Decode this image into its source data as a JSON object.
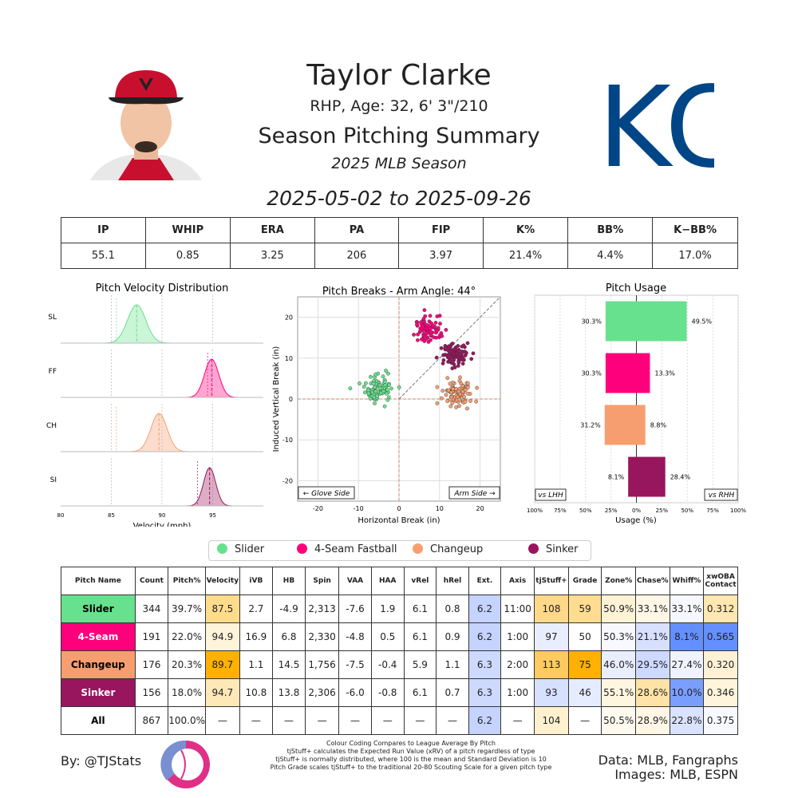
{
  "header": {
    "player_name": "Taylor Clarke",
    "player_info": "RHP, Age: 32, 6' 3\"/210",
    "summary_title": "Season Pitching Summary",
    "season": "2025 MLB Season",
    "date_range": "2025-05-02 to 2025-09-26",
    "team_logo_text": "KC"
  },
  "stats": {
    "headers": [
      "IP",
      "WHIP",
      "ERA",
      "PA",
      "FIP",
      "K%",
      "BB%",
      "K−BB%"
    ],
    "values": [
      "55.1",
      "0.85",
      "3.25",
      "206",
      "3.97",
      "21.4%",
      "4.4%",
      "17.0%"
    ]
  },
  "colors": {
    "slider": "#67e18d",
    "fastball": "#ff007d",
    "changeup": "#f79e70",
    "sinker": "#98165d",
    "table_blue": "#648fff",
    "table_orange": "#ffb000"
  },
  "chart_data": [
    {
      "type": "area",
      "title": "Pitch Velocity Distribution",
      "xlabel": "Velocity (mph)",
      "xlim": [
        80,
        100
      ],
      "xticks": [
        "80",
        "85",
        "90",
        "95"
      ],
      "series": [
        {
          "name": "SL",
          "mean": 87.5,
          "sd": 0.9,
          "color": "#67e18d",
          "league_mean": 85.5
        },
        {
          "name": "FF",
          "mean": 94.9,
          "sd": 0.7,
          "color": "#ff007d",
          "league_mean": 94.5
        },
        {
          "name": "CH",
          "mean": 89.7,
          "sd": 0.8,
          "color": "#f79e70",
          "league_mean": 85.5
        },
        {
          "name": "SI",
          "mean": 94.7,
          "sd": 0.6,
          "color": "#98165d",
          "league_mean": 93.5
        }
      ]
    },
    {
      "type": "scatter",
      "title": "Pitch Breaks - Arm Angle: 44°",
      "xlabel": "Horizontal Break (in)",
      "ylabel": "Induced Vertical Break (in)",
      "xlim": [
        -25,
        25
      ],
      "ylim": [
        -25,
        25
      ],
      "xticks": [
        "-20",
        "-10",
        "0",
        "10",
        "20"
      ],
      "yticks": [
        "20",
        "10",
        "0",
        "-10",
        "-20"
      ],
      "glove_side": "← Glove Side",
      "arm_side": "Arm Side →",
      "series": [
        {
          "name": "Slider",
          "hb": -4.9,
          "ivb": 2.7,
          "color": "#67e18d"
        },
        {
          "name": "4-Seam Fastball",
          "hb": 6.8,
          "ivb": 16.9,
          "color": "#ff007d"
        },
        {
          "name": "Changeup",
          "hb": 14.5,
          "ivb": 1.1,
          "color": "#f79e70"
        },
        {
          "name": "Sinker",
          "hb": 13.8,
          "ivb": 10.8,
          "color": "#98165d"
        }
      ]
    },
    {
      "type": "bar",
      "title": "Pitch Usage",
      "xlabel": "Usage (%)",
      "xlim": [
        -100,
        100
      ],
      "xticks": [
        "100%",
        "75%",
        "50%",
        "25%",
        "0%",
        "25%",
        "50%",
        "75%",
        "100%"
      ],
      "vs_lhh": "vs LHH",
      "vs_rhh": "vs RHH",
      "series": [
        {
          "name": "Slider",
          "lhh": 30.3,
          "rhh": 49.5,
          "lhh_label": "30.3%",
          "rhh_label": "49.5%",
          "color": "#67e18d"
        },
        {
          "name": "4-Seam Fastball",
          "lhh": 30.3,
          "rhh": 13.3,
          "lhh_label": "30.3%",
          "rhh_label": "13.3%",
          "color": "#ff007d"
        },
        {
          "name": "Changeup",
          "lhh": 31.2,
          "rhh": 8.8,
          "lhh_label": "31.2%",
          "rhh_label": "8.8%",
          "color": "#f79e70"
        },
        {
          "name": "Sinker",
          "lhh": 8.1,
          "rhh": 28.4,
          "lhh_label": "8.1%",
          "rhh_label": "28.4%",
          "color": "#98165d"
        }
      ]
    }
  ],
  "legend": {
    "items": [
      {
        "label": "Slider",
        "color": "#67e18d"
      },
      {
        "label": "4-Seam Fastball",
        "color": "#ff007d"
      },
      {
        "label": "Changeup",
        "color": "#f79e70"
      },
      {
        "label": "Sinker",
        "color": "#98165d"
      }
    ]
  },
  "pitch_table": {
    "headers": [
      "Pitch Name",
      "Count",
      "Pitch%",
      "Velocity",
      "iVB",
      "HB",
      "Spin",
      "VAA",
      "HAA",
      "vRel",
      "hRel",
      "Ext.",
      "Axis",
      "tjStuff+",
      "Grade",
      "Zone%",
      "Chase%",
      "Whiff%",
      "xwOBA Contact"
    ],
    "rows": [
      {
        "name": "Slider",
        "color": "#67e18d",
        "text_color": "#000000",
        "cells": [
          "344",
          "39.7%",
          "87.5",
          "2.7",
          "-4.9",
          "2,313",
          "-7.6",
          "1.9",
          "6.1",
          "0.8",
          "6.2",
          "11:00",
          "108",
          "59",
          "50.9%",
          "33.1%",
          "33.1%",
          "0.312"
        ],
        "fills": [
          "#ffffff",
          "#ffffff",
          "#ffdc8c",
          "#ffffff",
          "#ffffff",
          "#ffffff",
          "#ffffff",
          "#ffffff",
          "#ffffff",
          "#ffffff",
          "#c5d3ff",
          "#ffffff",
          "#ffd88a",
          "#ffdc90",
          "#fff3d6",
          "#fff6e6",
          "#f6f7ff",
          "#ffe7b0"
        ]
      },
      {
        "name": "4-Seam",
        "color": "#ff007d",
        "text_color": "#ffffff",
        "cells": [
          "191",
          "22.0%",
          "94.9",
          "16.9",
          "6.8",
          "2,330",
          "-4.8",
          "0.5",
          "6.1",
          "0.9",
          "6.2",
          "1:00",
          "97",
          "50",
          "50.3%",
          "21.1%",
          "8.1%",
          "0.565"
        ],
        "fills": [
          "#ffffff",
          "#ffffff",
          "#fff3d9",
          "#ffffff",
          "#ffffff",
          "#ffffff",
          "#ffffff",
          "#ffffff",
          "#ffffff",
          "#ffffff",
          "#c5d3ff",
          "#ffffff",
          "#e8eeff",
          "#ffffff",
          "#f8f9ff",
          "#d7e0ff",
          "#648fff",
          "#648fff"
        ]
      },
      {
        "name": "Changeup",
        "color": "#f79e70",
        "text_color": "#000000",
        "cells": [
          "176",
          "20.3%",
          "89.7",
          "1.1",
          "14.5",
          "1,756",
          "-7.5",
          "-0.4",
          "5.9",
          "1.1",
          "6.3",
          "2:00",
          "113",
          "75",
          "46.0%",
          "29.5%",
          "27.4%",
          "0.320"
        ],
        "fills": [
          "#ffffff",
          "#ffffff",
          "#ffb000",
          "#ffffff",
          "#ffffff",
          "#ffffff",
          "#ffffff",
          "#ffffff",
          "#ffffff",
          "#ffffff",
          "#cdd9ff",
          "#ffffff",
          "#ffca60",
          "#ffb000",
          "#e9eeff",
          "#cdd9ff",
          "#f0f3ff",
          "#fff1d6"
        ]
      },
      {
        "name": "Sinker",
        "color": "#98165d",
        "text_color": "#ffffff",
        "cells": [
          "156",
          "18.0%",
          "94.7",
          "10.8",
          "13.8",
          "2,306",
          "-6.0",
          "-0.8",
          "6.1",
          "0.7",
          "6.3",
          "1:00",
          "93",
          "46",
          "55.1%",
          "28.6%",
          "10.0%",
          "0.346"
        ],
        "fills": [
          "#ffffff",
          "#ffffff",
          "#ffe8b8",
          "#ffffff",
          "#ffffff",
          "#ffffff",
          "#ffffff",
          "#ffffff",
          "#ffffff",
          "#ffffff",
          "#cdd9ff",
          "#ffffff",
          "#d6e0ff",
          "#e6ecff",
          "#fff6e0",
          "#ffe3a6",
          "#7a9eff",
          "#fff4dc"
        ]
      },
      {
        "name": "All",
        "color": "#ffffff",
        "text_color": "#000000",
        "cells": [
          "867",
          "100.0%",
          "—",
          "—",
          "—",
          "—",
          "—",
          "—",
          "—",
          "—",
          "6.2",
          "—",
          "104",
          "—",
          "50.5%",
          "28.9%",
          "22.8%",
          "0.375"
        ],
        "fills": [
          "#ffffff",
          "#ffffff",
          "#ffffff",
          "#ffffff",
          "#ffffff",
          "#ffffff",
          "#ffffff",
          "#ffffff",
          "#ffffff",
          "#ffffff",
          "#c5d3ff",
          "#ffffff",
          "#fff1d0",
          "#ffffff",
          "#fffaf0",
          "#fff6e6",
          "#d9e2ff",
          "#f8f9ff"
        ]
      }
    ]
  },
  "footer": {
    "byline": "By: @TJStats",
    "notes": [
      "Colour Coding Compares to League Average By Pitch",
      "tjStuff+ calculates the Expected Run Value (xRV) of a pitch regardless of type",
      "tjStuff+ is normally distributed, where 100 is the mean and Standard Deviation is 10",
      "Pitch Grade scales tjStuff+ to the traditional 20-80 Scouting Scale for a given pitch type"
    ],
    "credits_line1": "Data: MLB, Fangraphs",
    "credits_line2": "Images: MLB, ESPN"
  }
}
